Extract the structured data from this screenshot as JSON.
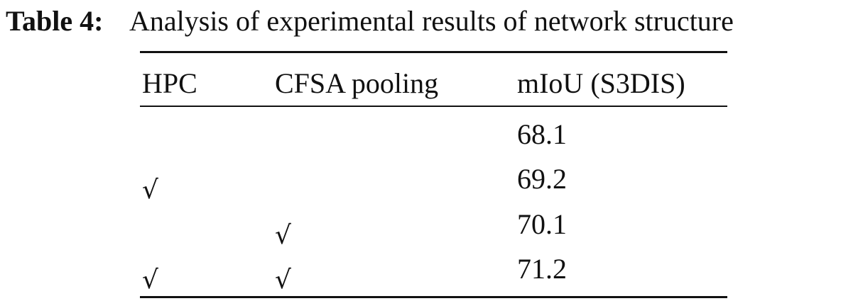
{
  "caption": {
    "label": "Table 4:",
    "text": "Analysis of experimental results of network structure"
  },
  "table": {
    "header": [
      "HPC",
      "CFSA pooling",
      "mIoU (S3DIS)"
    ],
    "rows": [
      [
        null,
        null,
        68.1
      ],
      [
        "√",
        null,
        69.2
      ],
      [
        null,
        "√",
        70.1
      ],
      [
        "√",
        "√",
        71.2
      ]
    ]
  }
}
